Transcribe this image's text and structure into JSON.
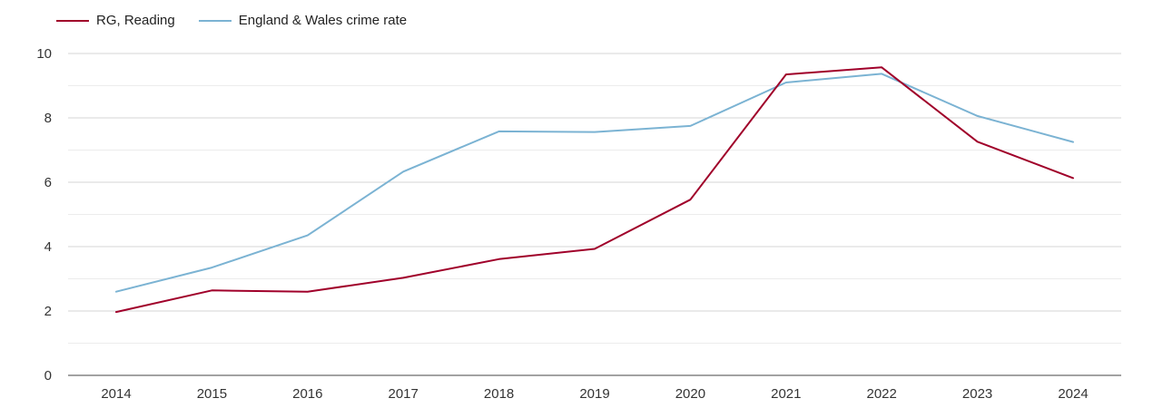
{
  "chart_data": {
    "type": "line",
    "title": "",
    "xlabel": "",
    "ylabel": "",
    "x": [
      "2014",
      "2015",
      "2016",
      "2017",
      "2018",
      "2019",
      "2020",
      "2021",
      "2022",
      "2023",
      "2024"
    ],
    "ylim": [
      0,
      10
    ],
    "yticks": [
      0,
      2,
      4,
      6,
      8,
      10
    ],
    "grid": true,
    "legend_position": "top-left",
    "series": [
      {
        "name": "RG, Reading",
        "color": "#a0002a",
        "values": [
          1.97,
          2.64,
          2.6,
          3.03,
          3.61,
          3.93,
          5.46,
          9.35,
          9.57,
          7.26,
          6.13
        ]
      },
      {
        "name": "England & Wales crime rate",
        "color": "#7bb3d3",
        "values": [
          2.6,
          3.35,
          4.35,
          6.33,
          7.58,
          7.56,
          7.75,
          9.1,
          9.37,
          8.06,
          7.25
        ]
      }
    ]
  }
}
